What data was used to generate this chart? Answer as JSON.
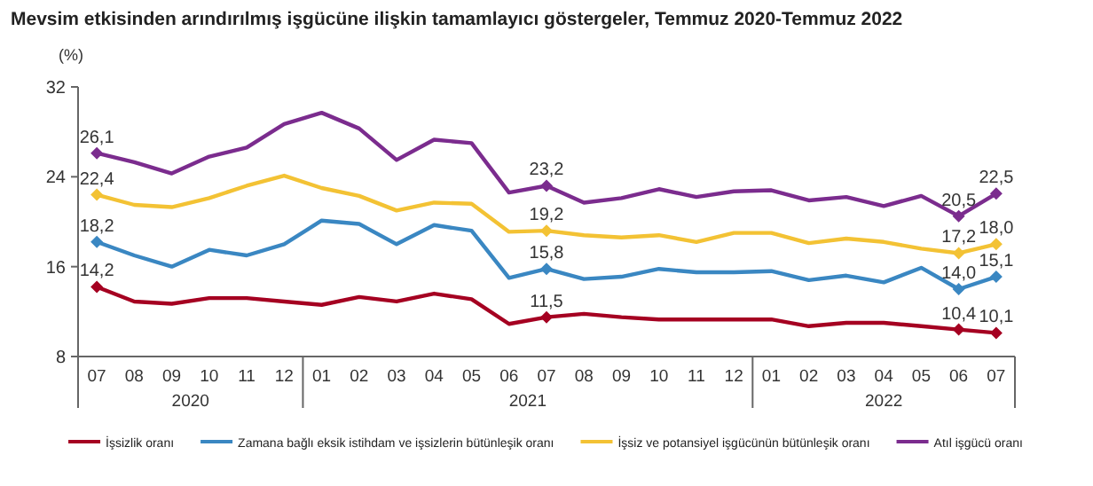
{
  "chart_data": {
    "type": "line",
    "title": "Mevsim etkisinden arındırılmış işgücüne ilişkin tamamlayıcı göstergeler, Temmuz 2020-Temmuz 2022",
    "ylabel": "(%)",
    "categories": [
      "07",
      "08",
      "09",
      "10",
      "11",
      "12",
      "01",
      "02",
      "03",
      "04",
      "05",
      "06",
      "07",
      "08",
      "09",
      "10",
      "11",
      "12",
      "01",
      "02",
      "03",
      "04",
      "05",
      "06",
      "07"
    ],
    "annotations": [
      "2020",
      "2021",
      "2022"
    ],
    "ylim": [
      8,
      32
    ],
    "yticks": [
      8,
      16,
      24,
      32
    ],
    "grid": false,
    "legend": "bottom",
    "series": [
      {
        "name": "İşsizlik oranı",
        "color": "#a50021",
        "values": [
          14.2,
          12.9,
          12.7,
          13.2,
          13.2,
          12.9,
          12.6,
          13.3,
          12.9,
          13.6,
          13.1,
          10.9,
          11.5,
          11.8,
          11.5,
          11.3,
          11.3,
          11.3,
          11.3,
          10.7,
          11.0,
          11.0,
          10.7,
          10.4,
          10.1
        ],
        "value_labels": [
          "14,2",
          null,
          null,
          null,
          null,
          null,
          null,
          null,
          null,
          null,
          null,
          null,
          "11,5",
          null,
          null,
          null,
          null,
          null,
          null,
          null,
          null,
          null,
          null,
          "10,4",
          "10,1"
        ]
      },
      {
        "name": "Zamana bağlı eksik istihdam ve işsizlerin bütünleşik oranı",
        "color": "#3a87c2",
        "values": [
          18.2,
          17.0,
          16.0,
          17.5,
          17.0,
          18.0,
          20.1,
          19.8,
          18.0,
          19.7,
          19.2,
          15.0,
          15.8,
          14.9,
          15.1,
          15.8,
          15.5,
          15.5,
          15.6,
          14.8,
          15.2,
          14.6,
          15.9,
          14.0,
          15.1
        ],
        "value_labels": [
          "18,2",
          null,
          null,
          null,
          null,
          null,
          null,
          null,
          null,
          null,
          null,
          null,
          "15,8",
          null,
          null,
          null,
          null,
          null,
          null,
          null,
          null,
          null,
          null,
          "14,0",
          "15,1"
        ]
      },
      {
        "name": "İşsiz ve potansiyel işgücünün bütünleşik oranı",
        "color": "#f3c234",
        "values": [
          22.4,
          21.5,
          21.3,
          22.1,
          23.2,
          24.1,
          23.0,
          22.3,
          21.0,
          21.7,
          21.6,
          19.1,
          19.2,
          18.8,
          18.6,
          18.8,
          18.2,
          19.0,
          19.0,
          18.1,
          18.5,
          18.2,
          17.6,
          17.2,
          18.0
        ],
        "value_labels": [
          "22,4",
          null,
          null,
          null,
          null,
          null,
          null,
          null,
          null,
          null,
          null,
          null,
          "19,2",
          null,
          null,
          null,
          null,
          null,
          null,
          null,
          null,
          null,
          null,
          "17,2",
          "18,0"
        ]
      },
      {
        "name": "Atıl işgücü oranı",
        "color": "#7b2c8e",
        "values": [
          26.1,
          25.3,
          24.3,
          25.8,
          26.6,
          28.7,
          29.7,
          28.3,
          25.5,
          27.3,
          27.0,
          22.6,
          23.2,
          21.7,
          22.1,
          22.9,
          22.2,
          22.7,
          22.8,
          21.9,
          22.2,
          21.4,
          22.3,
          20.5,
          22.5
        ],
        "value_labels": [
          "26,1",
          null,
          null,
          null,
          null,
          null,
          null,
          null,
          null,
          null,
          null,
          null,
          "23,2",
          null,
          null,
          null,
          null,
          null,
          null,
          null,
          null,
          null,
          null,
          "20,5",
          "22,5"
        ]
      }
    ]
  }
}
